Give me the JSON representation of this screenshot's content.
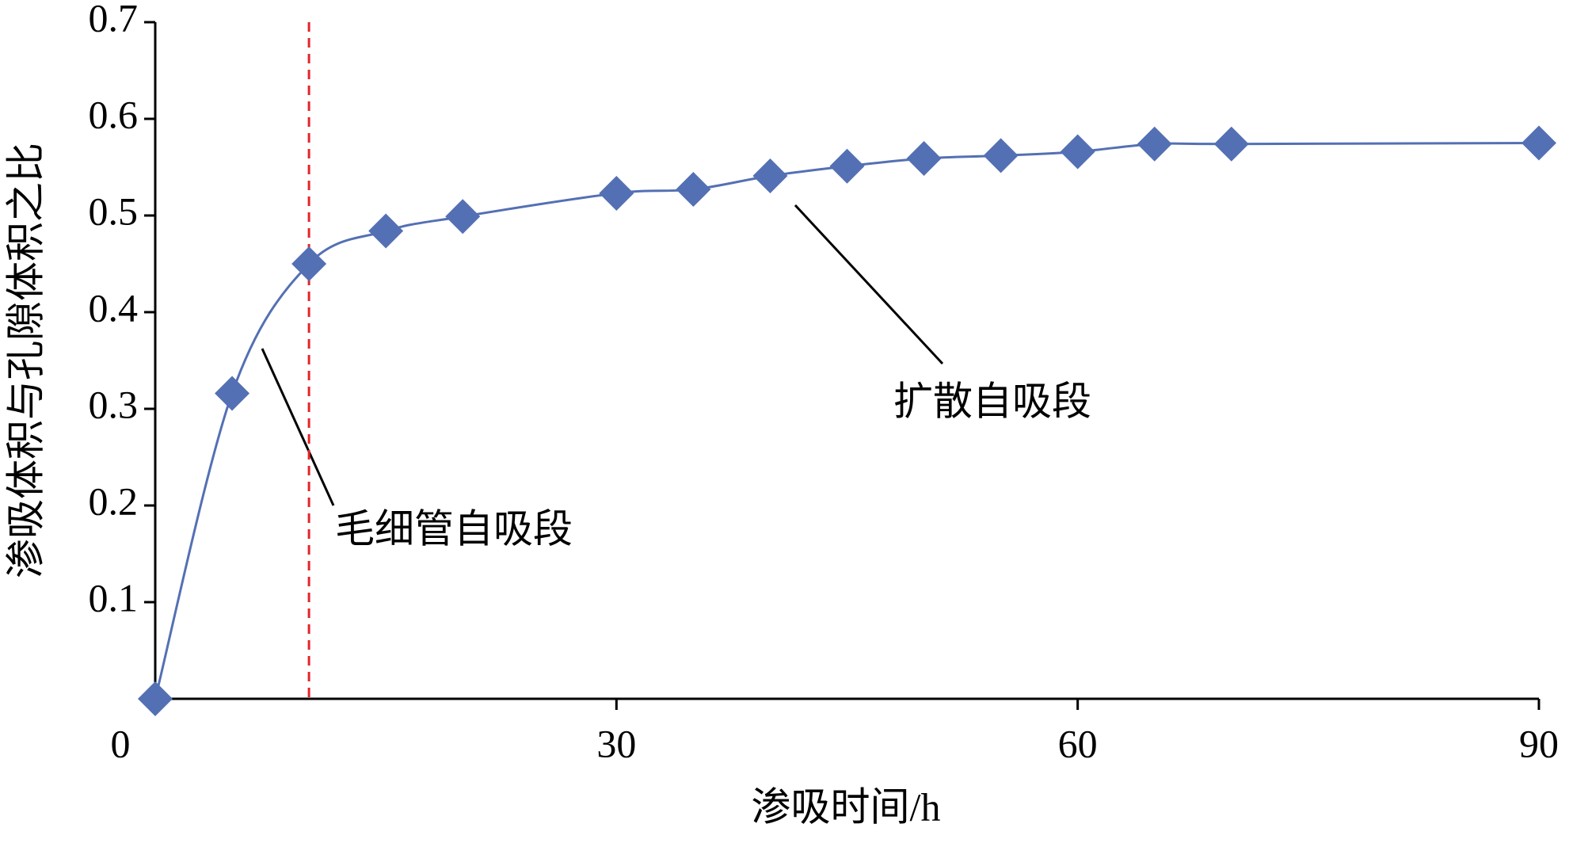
{
  "chart_data": {
    "type": "line",
    "y_label": "渗吸体积与孔隙体积之比",
    "x_label": "渗吸时间/h",
    "x": [
      0,
      5,
      10,
      15,
      20,
      30,
      35,
      40,
      45,
      50,
      55,
      60,
      65,
      70,
      90
    ],
    "series": [
      {
        "color": "#5470b4",
        "values": [
          0,
          0.316,
          0.45,
          0.484,
          0.499,
          0.523,
          0.527,
          0.541,
          0.551,
          0.559,
          0.562,
          0.566,
          0.574,
          0.574,
          0.575
        ]
      }
    ],
    "xlim": [
      0,
      90
    ],
    "xticks": [
      0,
      30,
      60,
      90
    ],
    "ylim": [
      0,
      0.7
    ],
    "yticks": [
      0.1,
      0.2,
      0.3,
      0.4,
      0.5,
      0.6,
      0.7
    ],
    "reference_line_x": 10,
    "reference_line_color": "#e0262b",
    "annotations": [
      {
        "text": "毛细管自吸段"
      },
      {
        "text": "扩散自吸段"
      }
    ]
  }
}
